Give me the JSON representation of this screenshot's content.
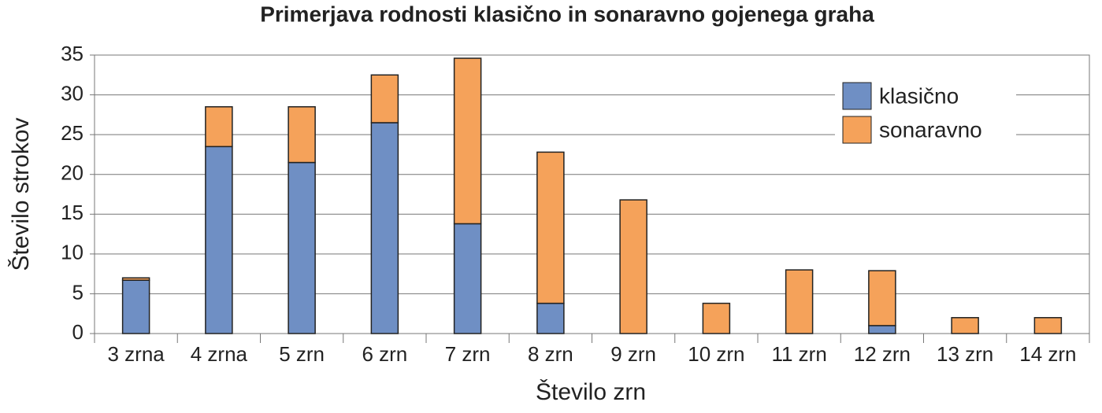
{
  "chart_data": {
    "type": "stacked-bar",
    "title": "Primerjava rodnosti klasično in sonaravno gojenega graha",
    "x_label": "Število zrn",
    "y_label": "Število strokov",
    "categories": [
      "3 zrna",
      "4 zrna",
      "5 zrn",
      "6 zrn",
      "7 zrn",
      "8 zrn",
      "9 zrn",
      "10 zrn",
      "11 zrn",
      "12 zrn",
      "13 zrn",
      "14 zrn"
    ],
    "series": [
      {
        "name": "klasično",
        "color": "#6f8fc4",
        "values": [
          6.7,
          23.5,
          21.5,
          26.5,
          13.8,
          3.8,
          0,
          0,
          0,
          1,
          0,
          0
        ]
      },
      {
        "name": "sonaravno",
        "color": "#f5a25a",
        "values": [
          0.3,
          5,
          7,
          6,
          20.8,
          19,
          16.8,
          3.8,
          8,
          6.9,
          2,
          2
        ]
      }
    ],
    "ylim": [
      0,
      35
    ],
    "yticks": [
      0,
      5,
      10,
      15,
      20,
      25,
      30,
      35
    ],
    "grid": true,
    "legend": "upper-right"
  }
}
